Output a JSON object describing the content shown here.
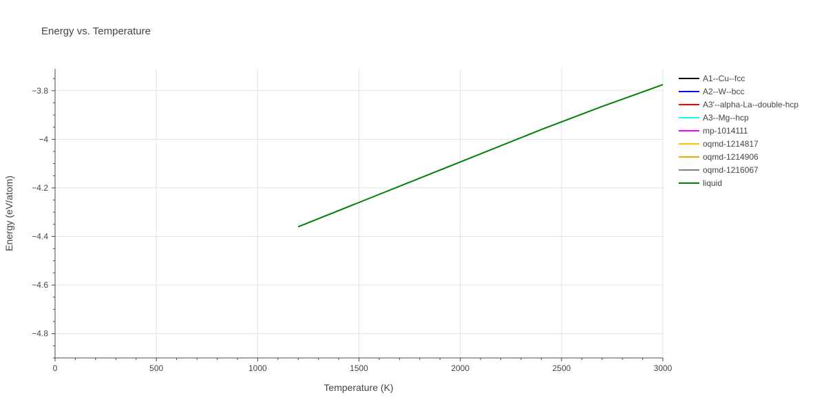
{
  "chart_data": {
    "type": "line",
    "title": "Energy vs. Temperature",
    "xlabel": "Temperature (K)",
    "ylabel": "Energy (eV/atom)",
    "xlim": [
      0,
      3000
    ],
    "ylim": [
      -4.9,
      -3.71
    ],
    "x_ticks": [
      0,
      500,
      1000,
      1500,
      2000,
      2500,
      3000
    ],
    "y_ticks": [
      -4.8,
      -4.6,
      -4.4,
      -4.2,
      -4,
      -3.8
    ],
    "y_tick_labels": [
      "−4.8",
      "−4.6",
      "−4.4",
      "−4.2",
      "−4",
      "−3.8"
    ],
    "grid": true,
    "legend_position": "right",
    "series": [
      {
        "name": "A1--Cu--fcc",
        "color": "#000000",
        "x": [],
        "y": []
      },
      {
        "name": "A2--W--bcc",
        "color": "#0000ff",
        "x": [],
        "y": []
      },
      {
        "name": "A3'--alpha-La--double-hcp",
        "color": "#ff0000",
        "x": [],
        "y": []
      },
      {
        "name": "A3--Mg--hcp",
        "color": "#00ffff",
        "x": [],
        "y": []
      },
      {
        "name": "mp-1014111",
        "color": "#ff00ff",
        "x": [],
        "y": []
      },
      {
        "name": "oqmd-1214817",
        "color": "#ffc000",
        "x": [],
        "y": []
      },
      {
        "name": "oqmd-1214906",
        "color": "#ffa500",
        "x": [],
        "y": []
      },
      {
        "name": "oqmd-1216067",
        "color": "#808080",
        "x": [],
        "y": []
      },
      {
        "name": "liquid",
        "color": "#008000",
        "x": [
          1200,
          1500,
          1800,
          2100,
          2400,
          2700,
          3000
        ],
        "y": [
          -4.36,
          -4.26,
          -4.16,
          -4.06,
          -3.96,
          -3.865,
          -3.775
        ]
      }
    ]
  }
}
